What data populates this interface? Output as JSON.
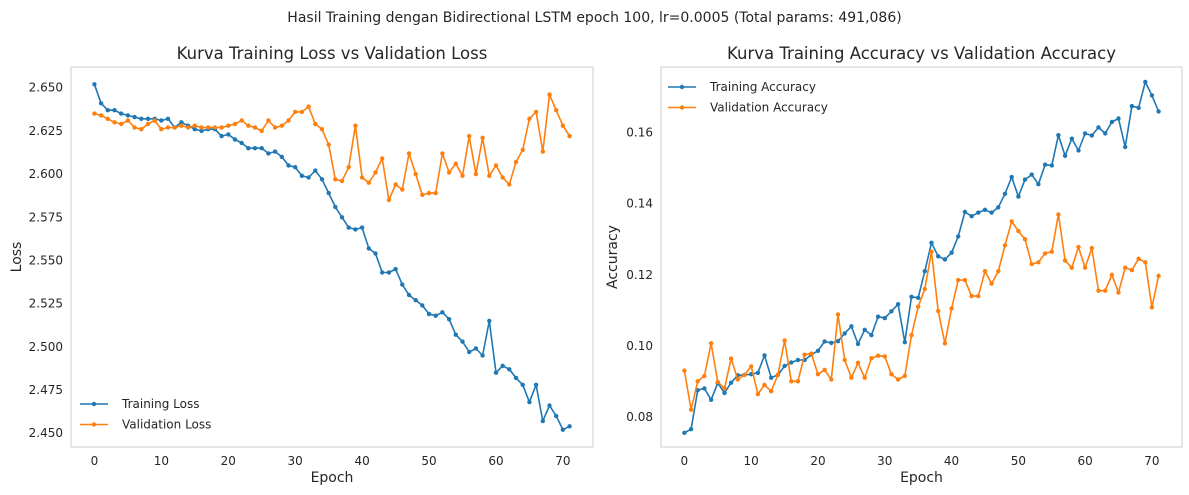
{
  "figure": {
    "suptitle": "Hasil Training dengan Bidirectional LSTM epoch 100, lr=0.0005 (Total params: 491,086)"
  },
  "colors": {
    "training": "#1f77b4",
    "validation": "#ff7f0e",
    "axes_edge": "#cccccc",
    "text": "#262626"
  },
  "chart_data": [
    {
      "type": "line",
      "title": "Kurva Training Loss vs Validation Loss",
      "xlabel": "Epoch",
      "ylabel": "Loss",
      "xlim": [
        -3.5,
        74.5
      ],
      "ylim": [
        2.442,
        2.662
      ],
      "xticks": [
        0,
        10,
        20,
        30,
        40,
        50,
        60,
        70
      ],
      "yticks": [
        2.45,
        2.475,
        2.5,
        2.525,
        2.55,
        2.575,
        2.6,
        2.625,
        2.65
      ],
      "ytick_labels": [
        "2.450",
        "2.475",
        "2.500",
        "2.525",
        "2.550",
        "2.575",
        "2.600",
        "2.625",
        "2.650"
      ],
      "grid": false,
      "legend": "lower-left",
      "x": [
        0,
        1,
        2,
        3,
        4,
        5,
        6,
        7,
        8,
        9,
        10,
        11,
        12,
        13,
        14,
        15,
        16,
        17,
        18,
        19,
        20,
        21,
        22,
        23,
        24,
        25,
        26,
        27,
        28,
        29,
        30,
        31,
        32,
        33,
        34,
        35,
        36,
        37,
        38,
        39,
        40,
        41,
        42,
        43,
        44,
        45,
        46,
        47,
        48,
        49,
        50,
        51,
        52,
        53,
        54,
        55,
        56,
        57,
        58,
        59,
        60,
        61,
        62,
        63,
        64,
        65,
        66,
        67,
        68,
        69,
        70,
        71
      ],
      "series": [
        {
          "name": "Training Loss",
          "values": [
            2.652,
            2.641,
            2.637,
            2.637,
            2.635,
            2.634,
            2.633,
            2.632,
            2.632,
            2.632,
            2.631,
            2.632,
            2.627,
            2.63,
            2.628,
            2.626,
            2.625,
            2.626,
            2.626,
            2.622,
            2.623,
            2.62,
            2.618,
            2.615,
            2.615,
            2.615,
            2.612,
            2.613,
            2.61,
            2.605,
            2.604,
            2.599,
            2.598,
            2.602,
            2.597,
            2.589,
            2.581,
            2.575,
            2.569,
            2.568,
            2.569,
            2.557,
            2.554,
            2.543,
            2.543,
            2.545,
            2.536,
            2.53,
            2.527,
            2.524,
            2.519,
            2.518,
            2.52,
            2.516,
            2.507,
            2.503,
            2.497,
            2.499,
            2.495,
            2.515,
            2.485,
            2.489,
            2.487,
            2.482,
            2.478,
            2.468,
            2.478,
            2.457,
            2.466,
            2.46,
            2.452,
            2.454
          ]
        },
        {
          "name": "Validation Loss",
          "values": [
            2.635,
            2.634,
            2.632,
            2.63,
            2.629,
            2.631,
            2.627,
            2.626,
            2.629,
            2.631,
            2.626,
            2.627,
            2.627,
            2.628,
            2.627,
            2.628,
            2.627,
            2.627,
            2.627,
            2.627,
            2.628,
            2.629,
            2.631,
            2.628,
            2.627,
            2.625,
            2.631,
            2.627,
            2.628,
            2.631,
            2.636,
            2.636,
            2.639,
            2.629,
            2.626,
            2.617,
            2.597,
            2.596,
            2.604,
            2.628,
            2.598,
            2.595,
            2.601,
            2.609,
            2.585,
            2.594,
            2.591,
            2.612,
            2.6,
            2.588,
            2.589,
            2.589,
            2.612,
            2.601,
            2.606,
            2.599,
            2.622,
            2.6,
            2.621,
            2.599,
            2.605,
            2.598,
            2.594,
            2.607,
            2.614,
            2.632,
            2.636,
            2.613,
            2.646,
            2.637,
            2.628,
            2.622
          ]
        }
      ]
    },
    {
      "type": "line",
      "title": "Kurva Training Accuracy vs Validation Accuracy",
      "xlabel": "Epoch",
      "ylabel": "Accuracy",
      "xlim": [
        -3.5,
        74.5
      ],
      "ylim": [
        0.0715,
        0.1785
      ],
      "xticks": [
        0,
        10,
        20,
        30,
        40,
        50,
        60,
        70
      ],
      "yticks": [
        0.08,
        0.1,
        0.12,
        0.14,
        0.16
      ],
      "ytick_labels": [
        "0.08",
        "0.10",
        "0.12",
        "0.14",
        "0.16"
      ],
      "grid": false,
      "legend": "upper-left",
      "x": [
        0,
        1,
        2,
        3,
        4,
        5,
        6,
        7,
        8,
        9,
        10,
        11,
        12,
        13,
        14,
        15,
        16,
        17,
        18,
        19,
        20,
        21,
        22,
        23,
        24,
        25,
        26,
        27,
        28,
        29,
        30,
        31,
        32,
        33,
        34,
        35,
        36,
        37,
        38,
        39,
        40,
        41,
        42,
        43,
        44,
        45,
        46,
        47,
        48,
        49,
        50,
        51,
        52,
        53,
        54,
        55,
        56,
        57,
        58,
        59,
        60,
        61,
        62,
        63,
        64,
        65,
        66,
        67,
        68,
        69,
        70,
        71
      ],
      "series": [
        {
          "name": "Training Accuracy",
          "values": [
            0.0755,
            0.0765,
            0.0875,
            0.088,
            0.0848,
            0.0895,
            0.0867,
            0.0896,
            0.0917,
            0.0918,
            0.092,
            0.0924,
            0.0973,
            0.091,
            0.0918,
            0.0943,
            0.0953,
            0.096,
            0.096,
            0.0975,
            0.0986,
            0.1012,
            0.1008,
            0.1013,
            0.1035,
            0.1055,
            0.1005,
            0.1045,
            0.103,
            0.1082,
            0.1078,
            0.1097,
            0.1117,
            0.101,
            0.1138,
            0.1135,
            0.121,
            0.129,
            0.1252,
            0.1243,
            0.1262,
            0.1308,
            0.1377,
            0.1365,
            0.1375,
            0.1383,
            0.1375,
            0.139,
            0.1428,
            0.1475,
            0.142,
            0.1468,
            0.1482,
            0.1455,
            0.151,
            0.1508,
            0.1593,
            0.1535,
            0.1583,
            0.155,
            0.1598,
            0.1592,
            0.1615,
            0.1598,
            0.163,
            0.164,
            0.156,
            0.1675,
            0.167,
            0.1743,
            0.1705,
            0.166
          ]
        },
        {
          "name": "Validation Accuracy",
          "values": [
            0.093,
            0.082,
            0.09,
            0.0915,
            0.1007,
            0.0898,
            0.088,
            0.0964,
            0.0905,
            0.0918,
            0.0942,
            0.0864,
            0.089,
            0.0872,
            0.0918,
            0.1015,
            0.09,
            0.09,
            0.0975,
            0.0978,
            0.092,
            0.0932,
            0.0905,
            0.1088,
            0.096,
            0.091,
            0.0952,
            0.091,
            0.0965,
            0.0972,
            0.097,
            0.092,
            0.0905,
            0.0915,
            0.103,
            0.111,
            0.116,
            0.1265,
            0.1098,
            0.1007,
            0.1105,
            0.1185,
            0.1185,
            0.114,
            0.114,
            0.121,
            0.1175,
            0.121,
            0.1283,
            0.135,
            0.1323,
            0.13,
            0.123,
            0.1235,
            0.126,
            0.1265,
            0.137,
            0.124,
            0.122,
            0.1278,
            0.122,
            0.1275,
            0.1155,
            0.1155,
            0.12,
            0.115,
            0.122,
            0.1213,
            0.1245,
            0.1235,
            0.1108,
            0.1197
          ]
        }
      ]
    }
  ]
}
